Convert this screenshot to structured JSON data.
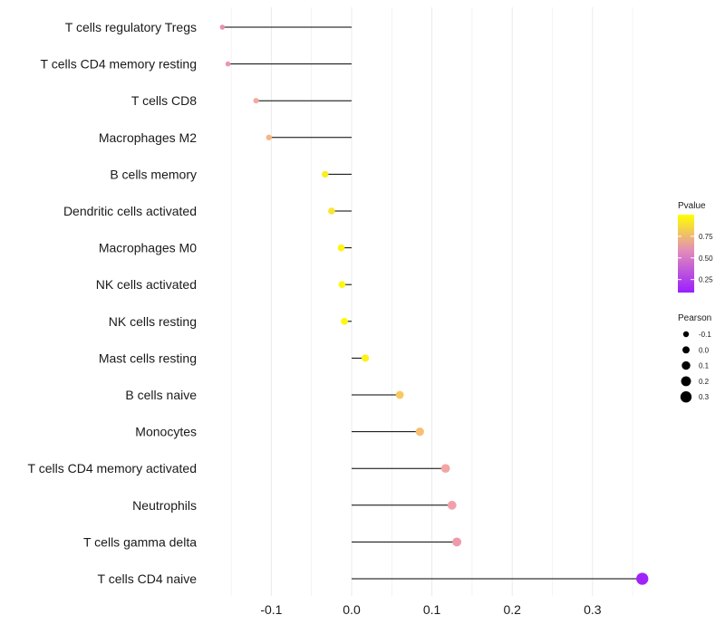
{
  "chart_data": {
    "type": "lollipop",
    "title": "",
    "xlabel": "",
    "ylabel": "",
    "xlim": [
      -0.18,
      0.37
    ],
    "grid": true,
    "xticks": [
      -0.1,
      0.0,
      0.1,
      0.2,
      0.3
    ],
    "xtick_labels": [
      "-0.1",
      "0.0",
      "0.1",
      "0.2",
      "0.3"
    ],
    "colors": {
      "low": "#9a1fff",
      "mid": "#f5a3a6",
      "high": "#ffff00",
      "stem": "#000000",
      "grid": "#ebebeb"
    },
    "categories": [
      "T cells regulatory  Tregs",
      "T cells CD4 memory resting",
      "T cells CD8",
      "Macrophages M2",
      "B cells memory",
      "Dendritic cells activated",
      "Macrophages M0",
      "NK cells activated",
      "NK cells resting",
      "Mast cells resting",
      "B cells naive",
      "Monocytes",
      "T cells CD4 memory activated",
      "Neutrophils",
      "T cells gamma delta",
      "T cells CD4 naive"
    ],
    "pearson": [
      -0.161,
      -0.154,
      -0.119,
      -0.103,
      -0.033,
      -0.025,
      -0.013,
      -0.012,
      -0.009,
      0.017,
      0.06,
      0.085,
      0.117,
      0.125,
      0.131,
      0.362
    ],
    "pvalue": [
      0.52,
      0.55,
      0.62,
      0.68,
      0.92,
      0.88,
      0.95,
      0.96,
      0.97,
      0.94,
      0.76,
      0.72,
      0.6,
      0.58,
      0.56,
      0.12
    ],
    "legend_color": {
      "title": "Pvalue",
      "ticks": [
        0.25,
        0.5,
        0.75
      ],
      "tick_labels": [
        "0.25",
        "0.50",
        "0.75"
      ],
      "range": [
        0.1,
        1.0
      ]
    },
    "legend_size": {
      "title": "Pearson",
      "values": [
        -0.1,
        0.0,
        0.1,
        0.2,
        0.3
      ],
      "labels": [
        "-0.1",
        "0.0",
        "0.1",
        "0.2",
        "0.3"
      ]
    },
    "legend_position": "right"
  }
}
